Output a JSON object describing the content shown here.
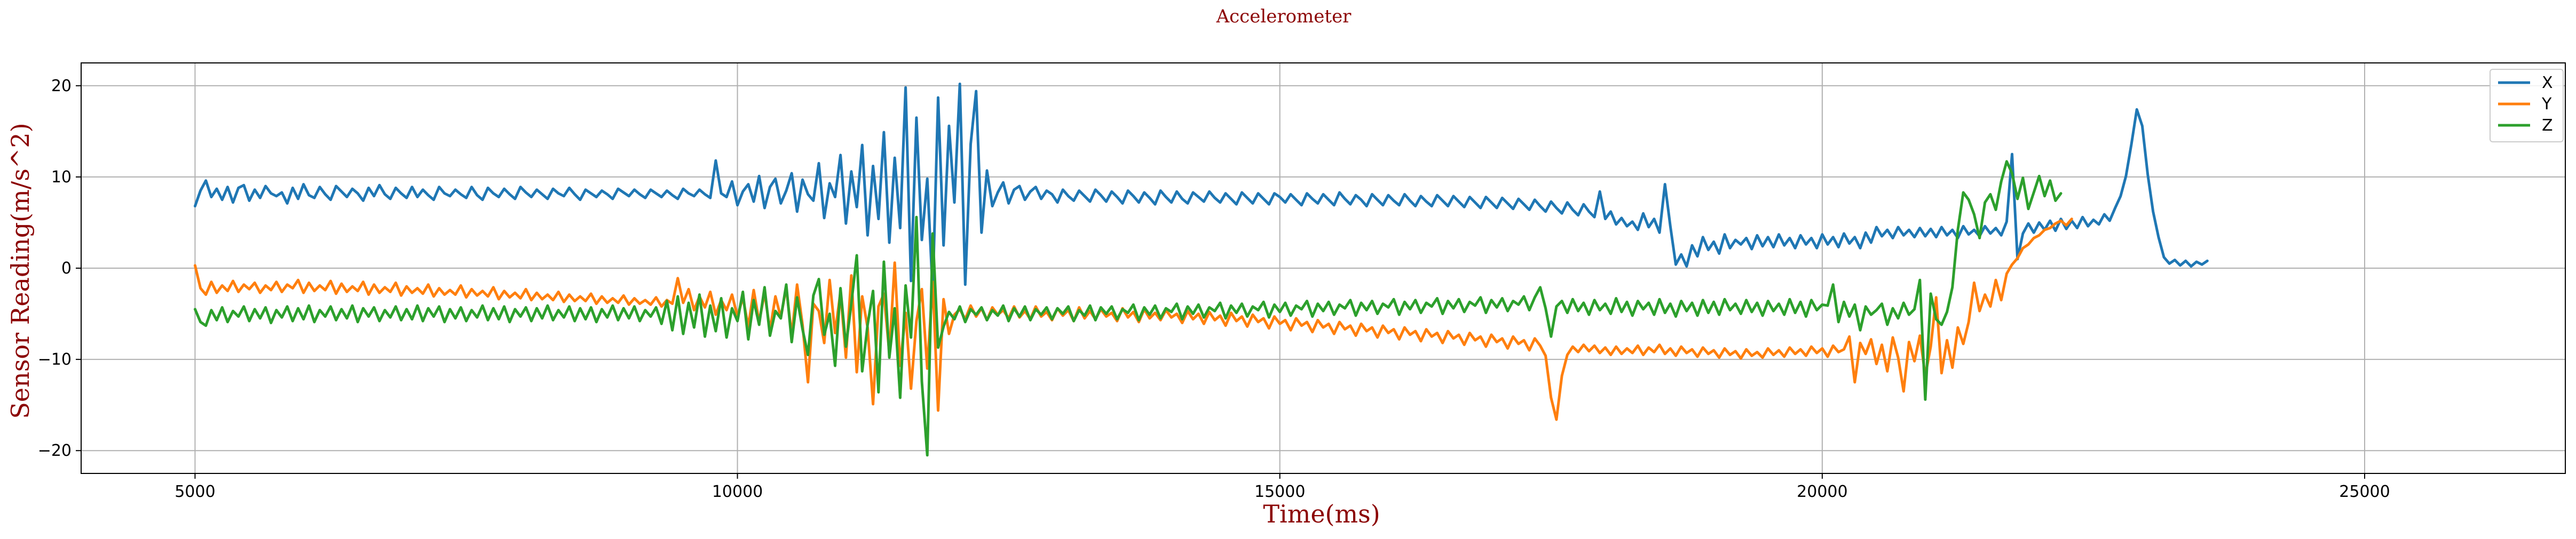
{
  "chart_data": {
    "type": "line",
    "title": "Accelerometer",
    "xlabel": "Time(ms)",
    "ylabel": "Sensor Reading(m/s^2)",
    "xlim": [
      3950,
      26850
    ],
    "ylim": [
      -22.5,
      22.5
    ],
    "x_ticks": [
      5000,
      10000,
      15000,
      20000,
      25000
    ],
    "y_ticks": [
      -20,
      -10,
      0,
      10,
      20
    ],
    "grid": true,
    "legend_position": "top-right",
    "x_start": 5000,
    "x_step": 50,
    "series": [
      {
        "name": "X",
        "color": "#1f77b4",
        "values": [
          6.8,
          8.5,
          9.6,
          7.8,
          8.7,
          7.5,
          8.9,
          7.2,
          8.8,
          9.1,
          7.4,
          8.6,
          7.7,
          9,
          8.2,
          7.9,
          8.3,
          7.1,
          8.8,
          7.6,
          9.2,
          8,
          7.7,
          8.9,
          8.1,
          7.5,
          9,
          8.4,
          7.8,
          8.7,
          8.2,
          7.4,
          8.8,
          7.9,
          9.1,
          8.1,
          7.6,
          8.8,
          8.2,
          7.7,
          8.9,
          7.8,
          8.6,
          8,
          7.5,
          8.9,
          8.2,
          7.9,
          8.6,
          8.1,
          7.7,
          8.9,
          8,
          7.5,
          8.8,
          8.2,
          7.8,
          8.7,
          8.1,
          7.6,
          8.9,
          8.3,
          7.8,
          8.6,
          8.1,
          7.6,
          8.7,
          8.2,
          7.9,
          8.8,
          8.1,
          7.5,
          8.6,
          8.2,
          7.8,
          8.5,
          8.1,
          7.6,
          8.7,
          8.3,
          7.9,
          8.6,
          8.1,
          7.7,
          8.6,
          8.2,
          7.8,
          8.5,
          8,
          7.6,
          8.7,
          8.2,
          7.9,
          8.6,
          8.1,
          7.7,
          11.8,
          8.2,
          7.8,
          9.5,
          6.9,
          8.4,
          9.2,
          7.3,
          10.1,
          6.6,
          8.9,
          9.8,
          7.1,
          8.5,
          10.4,
          6.2,
          9.7,
          8.1,
          7.4,
          11.5,
          5.5,
          9.3,
          7.8,
          12.4,
          4.9,
          10.6,
          6.7,
          13.5,
          3.6,
          11.2,
          5.4,
          14.9,
          2.8,
          12.1,
          4.4,
          19.8,
          -1.4,
          16.5,
          3.1,
          9.8,
          -2.7,
          18.7,
          2.5,
          15.6,
          7.2,
          20.2,
          -1.8,
          13.6,
          19.4,
          3.9,
          10.7,
          6.8,
          8.3,
          9.4,
          7.1,
          8.6,
          9,
          7.5,
          8.4,
          8.9,
          7.6,
          8.5,
          8.1,
          7.2,
          8.6,
          7.9,
          7.4,
          8.5,
          7.9,
          7.3,
          8.6,
          8,
          7.3,
          8.4,
          7.8,
          7.1,
          8.5,
          7.9,
          7.2,
          8.3,
          7.7,
          7,
          8.5,
          7.8,
          7.2,
          8.4,
          7.6,
          7.1,
          8.3,
          7.8,
          7.3,
          8.4,
          7.7,
          7.2,
          8.2,
          7.6,
          7,
          8.3,
          7.7,
          7.1,
          8.2,
          7.6,
          7,
          8.2,
          7.8,
          7.2,
          8.1,
          7.5,
          6.9,
          8.2,
          7.6,
          7.1,
          8.1,
          7.5,
          6.9,
          8.3,
          7.6,
          7,
          8,
          7.5,
          6.8,
          8.1,
          7.5,
          6.9,
          8,
          7.4,
          6.9,
          8.1,
          7.4,
          6.8,
          7.9,
          7.3,
          6.8,
          8,
          7.4,
          6.8,
          7.9,
          7.3,
          6.7,
          7.8,
          7.2,
          6.6,
          7.8,
          7.2,
          6.6,
          7.7,
          7.1,
          6.5,
          7.6,
          7,
          6.4,
          7.5,
          6.8,
          6.2,
          7.3,
          6.6,
          6,
          7.2,
          6.4,
          5.8,
          7,
          6.2,
          5.6,
          8.4,
          5.4,
          6.2,
          4.8,
          5.5,
          4.6,
          5.1,
          4.2,
          6,
          4.5,
          5.4,
          3.9,
          9.2,
          4.6,
          0.4,
          1.5,
          0.2,
          2.5,
          1.3,
          3.4,
          2,
          2.9,
          1.6,
          3.7,
          2.2,
          3.1,
          2.6,
          3.3,
          2.1,
          3.6,
          2.4,
          3.4,
          2.3,
          3.7,
          2.5,
          3.3,
          2.2,
          3.6,
          2.6,
          3.3,
          2.2,
          3.7,
          2.6,
          3.4,
          2.3,
          3.8,
          2.7,
          3.4,
          2.2,
          3.9,
          2.8,
          4.5,
          3.5,
          4.2,
          3.3,
          4.5,
          3.6,
          4.2,
          3.4,
          4.4,
          3.5,
          4.3,
          3.4,
          4.5,
          3.6,
          4.2,
          3.3,
          4.6,
          3.7,
          4.2,
          3.5,
          4.6,
          3.8,
          4.4,
          3.6,
          5.1,
          12.5,
          1,
          3.8,
          4.9,
          3.9,
          5,
          4.2,
          5.2,
          4.1,
          5.4,
          4.3,
          5.2,
          4.4,
          5.6,
          4.6,
          5.3,
          4.8,
          5.9,
          5.2,
          6.6,
          7.9,
          10.1,
          13.6,
          17.4,
          15.6,
          10.3,
          6.2,
          3.4,
          1.2,
          0.5,
          0.9,
          0.3,
          0.8,
          0.2,
          0.7,
          0.4,
          0.8
        ]
      },
      {
        "name": "Y",
        "color": "#ff7f0e",
        "values": [
          0.3,
          -2.2,
          -2.9,
          -1.5,
          -2.7,
          -1.9,
          -2.5,
          -1.4,
          -2.6,
          -1.8,
          -2.3,
          -1.6,
          -2.7,
          -1.9,
          -2.4,
          -1.5,
          -2.6,
          -1.8,
          -2.2,
          -1.3,
          -2.7,
          -1.6,
          -2.5,
          -1.9,
          -2.4,
          -1.4,
          -2.8,
          -1.7,
          -2.6,
          -2,
          -2.5,
          -1.5,
          -2.9,
          -1.8,
          -2.7,
          -2.1,
          -2.6,
          -1.6,
          -3,
          -2,
          -2.7,
          -2.2,
          -2.8,
          -1.8,
          -3.1,
          -2.2,
          -2.9,
          -2.4,
          -2.9,
          -1.9,
          -3.2,
          -2.3,
          -3,
          -2.5,
          -3.1,
          -2.1,
          -3.4,
          -2.5,
          -3.2,
          -2.7,
          -3.3,
          -2.3,
          -3.5,
          -2.7,
          -3.4,
          -2.9,
          -3.5,
          -2.6,
          -3.7,
          -2.9,
          -3.6,
          -3.1,
          -3.6,
          -2.8,
          -3.9,
          -3.1,
          -3.8,
          -3.3,
          -3.8,
          -3,
          -4,
          -3.3,
          -3.9,
          -3.5,
          -4,
          -3.2,
          -4.2,
          -3.5,
          -3.9,
          -1.1,
          -3.8,
          -2.3,
          -4.6,
          -3.1,
          -4.3,
          -2.6,
          -5.1,
          -3.5,
          -4.6,
          -2.9,
          -5.3,
          -3.2,
          -6.4,
          -2.4,
          -5.9,
          -2.7,
          -6.8,
          -3.1,
          -5.4,
          -2.1,
          -7.4,
          -1.8,
          -6.2,
          -12.5,
          -3.9,
          -4.7,
          -8.2,
          -1.3,
          -7.1,
          -2.6,
          -9.8,
          -0.8,
          -11.4,
          -3.1,
          -6.5,
          -14.9,
          -4.2,
          -2.8,
          -9.3,
          0.6,
          -10.7,
          -4.9,
          -13.2,
          -5.8,
          -2.3,
          -11,
          -1.5,
          -15.6,
          -3.4,
          -7.2,
          -5.1,
          -4.5,
          -5.6,
          -4.1,
          -5.3,
          -4.4,
          -5.7,
          -4.3,
          -5.1,
          -4.6,
          -5.5,
          -4.2,
          -5.4,
          -4.7,
          -5.6,
          -4.2,
          -5.3,
          -4.8,
          -5.7,
          -4.4,
          -5.2,
          -4.6,
          -5.8,
          -4.3,
          -5.5,
          -4.7,
          -5.6,
          -4.5,
          -5.3,
          -4.9,
          -5.8,
          -4.4,
          -5.4,
          -4.8,
          -5.9,
          -4.5,
          -5.5,
          -4.9,
          -5.7,
          -4.6,
          -5.4,
          -5,
          -6,
          -4.7,
          -5.6,
          -5,
          -6.1,
          -4.8,
          -5.7,
          -5.2,
          -6.3,
          -4.9,
          -5.8,
          -5.3,
          -6.4,
          -5.1,
          -5.9,
          -5.5,
          -6.6,
          -5.3,
          -6.1,
          -5.7,
          -6.8,
          -5.5,
          -6.3,
          -5.9,
          -7,
          -5.7,
          -6.5,
          -6.1,
          -7.2,
          -5.9,
          -6.7,
          -6.3,
          -7.4,
          -6.1,
          -6.9,
          -6.5,
          -7.6,
          -6.3,
          -7.1,
          -6.7,
          -7.8,
          -6.5,
          -7.3,
          -6.9,
          -8,
          -6.7,
          -7.5,
          -7.1,
          -8.2,
          -6.9,
          -7.7,
          -7.3,
          -8.4,
          -7.1,
          -7.9,
          -7.5,
          -8.6,
          -7.3,
          -8.1,
          -7.7,
          -8.8,
          -7.5,
          -8.3,
          -7.9,
          -9,
          -7.7,
          -8.5,
          -9.6,
          -14.2,
          -16.6,
          -11.8,
          -9.5,
          -8.6,
          -9.2,
          -8.4,
          -9.1,
          -8.5,
          -9.3,
          -8.7,
          -9.5,
          -8.6,
          -9.4,
          -8.8,
          -9.3,
          -8.5,
          -9.5,
          -8.7,
          -9.2,
          -8.4,
          -9.4,
          -8.8,
          -9.6,
          -8.6,
          -9.3,
          -8.9,
          -9.7,
          -8.7,
          -9.4,
          -9,
          -9.8,
          -8.8,
          -9.5,
          -9.1,
          -9.9,
          -8.9,
          -9.6,
          -9.2,
          -9.8,
          -8.8,
          -9.5,
          -9,
          -9.7,
          -8.7,
          -9.4,
          -8.9,
          -9.6,
          -8.6,
          -9.3,
          -8.8,
          -9.7,
          -8.5,
          -9.2,
          -8.9,
          -7.5,
          -12.5,
          -8.2,
          -9.4,
          -7.8,
          -10.5,
          -8.4,
          -11.3,
          -7.6,
          -9.8,
          -13.5,
          -8.1,
          -10.2,
          -7.4,
          -11.8,
          -8.6,
          -3.2,
          -11.5,
          -7.9,
          -10.9,
          -6.5,
          -8.3,
          -5.9,
          -1.6,
          -4.7,
          -2.9,
          -4.2,
          -1.3,
          -3.5,
          -0.6,
          0.4,
          1.1,
          2.2,
          2.6,
          3.3,
          3.6,
          4.2,
          4.4,
          4.9,
          5.2,
          4.7,
          5.4
        ]
      },
      {
        "name": "Z",
        "color": "#2ca02c",
        "values": [
          -4.5,
          -5.9,
          -6.3,
          -4.6,
          -5.7,
          -4.3,
          -5.9,
          -4.7,
          -5.3,
          -4.2,
          -5.8,
          -4.5,
          -5.5,
          -4.3,
          -6,
          -4.6,
          -5.4,
          -4.2,
          -5.8,
          -4.4,
          -5.6,
          -4.1,
          -5.9,
          -4.6,
          -5.3,
          -4.2,
          -5.7,
          -4.5,
          -5.5,
          -4.1,
          -5.9,
          -4.4,
          -5.3,
          -4.3,
          -5.8,
          -4.6,
          -5.4,
          -4.2,
          -5.7,
          -4.5,
          -5.6,
          -4.1,
          -5.8,
          -4.4,
          -5.3,
          -4.2,
          -5.9,
          -4.5,
          -5.5,
          -4.3,
          -5.8,
          -4.6,
          -5.4,
          -4.1,
          -5.7,
          -4.4,
          -5.6,
          -4.2,
          -5.9,
          -4.5,
          -5.3,
          -4.3,
          -5.8,
          -4.4,
          -5.5,
          -4.1,
          -5.7,
          -4.6,
          -5.4,
          -4.2,
          -5.8,
          -4.4,
          -5.6,
          -4.3,
          -5.9,
          -4.5,
          -5.4,
          -4.1,
          -5.7,
          -4.4,
          -5.5,
          -4.2,
          -5.8,
          -4.6,
          -5.3,
          -4.3,
          -6.1,
          -3.6,
          -6.8,
          -3.1,
          -7.2,
          -3.8,
          -6.5,
          -2.9,
          -7.5,
          -4.1,
          -6.9,
          -3.3,
          -7.6,
          -4.4,
          -5.8,
          -2.6,
          -7.8,
          -3.5,
          -6.2,
          -2.1,
          -7.4,
          -4.7,
          -5.5,
          -1.8,
          -8.1,
          -3.2,
          -6.7,
          -9.5,
          -3,
          -1.2,
          -7.3,
          -5,
          -10.7,
          -2.2,
          -8.6,
          -3.9,
          1.4,
          -11.3,
          -6.2,
          -2.5,
          -13.6,
          0.7,
          -9.8,
          -4.4,
          -14.2,
          -1.9,
          -7.6,
          5.6,
          -12.4,
          -20.5,
          3.8,
          -8.7,
          -6.4,
          -4.8,
          -5.6,
          -4.2,
          -5.9,
          -4.5,
          -5.1,
          -4.3,
          -5.7,
          -4.6,
          -5.2,
          -4.1,
          -5.8,
          -4.4,
          -5.3,
          -4.2,
          -5.7,
          -4.5,
          -5.1,
          -4.3,
          -5.6,
          -4.4,
          -5,
          -4.2,
          -5.8,
          -4.6,
          -5.2,
          -4.1,
          -5.7,
          -4.3,
          -5,
          -4.2,
          -5.6,
          -4.5,
          -4.9,
          -4,
          -5.7,
          -4.3,
          -5.1,
          -4.1,
          -5.5,
          -4.4,
          -4.8,
          -3.9,
          -5.6,
          -4.2,
          -5,
          -4,
          -5.4,
          -4.3,
          -4.7,
          -3.8,
          -5.5,
          -4.1,
          -4.9,
          -3.9,
          -5.3,
          -4.2,
          -4.6,
          -3.7,
          -5.4,
          -4,
          -4.8,
          -3.8,
          -5.2,
          -4.1,
          -4.5,
          -3.6,
          -5.3,
          -3.9,
          -4.7,
          -3.7,
          -5.1,
          -4,
          -4.4,
          -3.5,
          -5.2,
          -3.8,
          -4.6,
          -3.6,
          -5,
          -3.9,
          -4.3,
          -3.4,
          -5.1,
          -3.7,
          -4.5,
          -3.5,
          -4.9,
          -3.8,
          -4.2,
          -3.3,
          -5,
          -3.6,
          -4.4,
          -3.4,
          -4.8,
          -3.7,
          -4.1,
          -3.2,
          -4.9,
          -3.5,
          -4.3,
          -3.3,
          -4.7,
          -3.6,
          -4,
          -3.1,
          -4.6,
          -3.2,
          -2.1,
          -4.4,
          -7.5,
          -4.2,
          -3.6,
          -4.9,
          -3.4,
          -4.7,
          -3.8,
          -5.1,
          -3.5,
          -4.6,
          -3.9,
          -5,
          -3.3,
          -4.8,
          -3.7,
          -5.2,
          -3.6,
          -4.5,
          -3.8,
          -5.1,
          -3.4,
          -4.9,
          -3.9,
          -5.3,
          -3.6,
          -4.7,
          -3.8,
          -5.2,
          -3.5,
          -4.9,
          -3.7,
          -5.1,
          -3.4,
          -4.6,
          -3.9,
          -5,
          -3.5,
          -4.8,
          -3.8,
          -5.2,
          -3.6,
          -4.7,
          -3.9,
          -5.1,
          -3.4,
          -4.9,
          -3.7,
          -5.3,
          -3.5,
          -4.6,
          -4,
          -4.1,
          -1.8,
          -5.9,
          -3.7,
          -5.3,
          -4,
          -6.8,
          -4.2,
          -5.1,
          -4.6,
          -3.9,
          -6.2,
          -4.4,
          -5.5,
          -3.8,
          -5.1,
          -4.5,
          -1.3,
          -14.4,
          -2.8,
          -5.6,
          -6.2,
          -4.8,
          -2.1,
          4.2,
          8.3,
          7.5,
          5.9,
          3.3,
          7.2,
          8.1,
          6.4,
          9.5,
          11.7,
          10.4,
          7.6,
          9.9,
          6.5,
          8.3,
          10.1,
          7.9,
          9.6,
          7.4,
          8.2
        ]
      }
    ]
  }
}
